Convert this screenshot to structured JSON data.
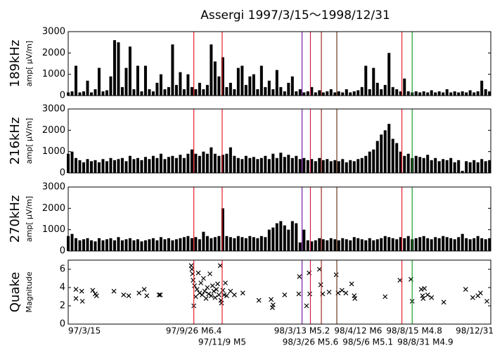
{
  "title": "Assergi 1997/3/15〜1998/12/31",
  "events": [
    {
      "x": 195,
      "label": "97/9/26 M6.4",
      "color": "#e8202a"
    },
    {
      "x": 239,
      "label": "97/11/9 M5",
      "color": "#e8202a"
    },
    {
      "x": 363,
      "label": "98/3/13 M5.2",
      "color": "#7a1fa0"
    },
    {
      "x": 376,
      "label": "98/3/26 M5.6",
      "color": "#d0204a"
    },
    {
      "x": 393,
      "label": "98/4/12 M6",
      "color": "#9a2a1a"
    },
    {
      "x": 417,
      "label": "98/5/6 M5.1",
      "color": "#6a3a20"
    },
    {
      "x": 518,
      "label": "98/8/15 M4.8",
      "color": "#e8202a"
    },
    {
      "x": 534,
      "label": "98/8/31 M4.9",
      "color": "#1a9a2a"
    }
  ],
  "chart_data": [
    {
      "type": "spike",
      "ylabel": "189kHz",
      "ylabel_unit": "amp[ μV/m]",
      "color": "#000000",
      "xlim": [
        0,
        656
      ],
      "ylim": [
        0,
        3000
      ],
      "yticks": [
        0,
        1000,
        2000,
        3000
      ],
      "x": [
        0,
        6,
        12,
        18,
        24,
        30,
        36,
        42,
        48,
        54,
        60,
        66,
        72,
        78,
        84,
        90,
        96,
        102,
        108,
        114,
        120,
        126,
        132,
        138,
        144,
        150,
        156,
        162,
        168,
        174,
        180,
        186,
        192,
        198,
        204,
        210,
        216,
        222,
        228,
        234,
        240,
        246,
        252,
        258,
        264,
        270,
        276,
        282,
        288,
        294,
        300,
        306,
        312,
        318,
        324,
        330,
        336,
        342,
        348,
        354,
        360,
        366,
        372,
        378,
        384,
        390,
        396,
        402,
        408,
        414,
        420,
        426,
        432,
        438,
        444,
        450,
        456,
        462,
        468,
        474,
        480,
        486,
        492,
        498,
        504,
        510,
        516,
        522,
        528,
        534,
        540,
        546,
        552,
        558,
        564,
        570,
        576,
        582,
        588,
        594,
        600,
        606,
        612,
        618,
        624,
        630,
        636,
        642,
        648,
        654
      ],
      "values": [
        150,
        200,
        1400,
        150,
        200,
        700,
        150,
        300,
        1300,
        200,
        250,
        900,
        2600,
        2500,
        400,
        1300,
        2300,
        300,
        1400,
        200,
        1400,
        300,
        200,
        600,
        1000,
        300,
        400,
        2400,
        500,
        1100,
        300,
        1000,
        400,
        300,
        600,
        300,
        500,
        2400,
        1600,
        900,
        1800,
        400,
        600,
        300,
        1300,
        1400,
        500,
        900,
        1000,
        300,
        1400,
        400,
        700,
        300,
        1200,
        400,
        200,
        600,
        900,
        200,
        300,
        150,
        200,
        400,
        150,
        250,
        150,
        200,
        300,
        150,
        200,
        150,
        300,
        150,
        200,
        250,
        400,
        1400,
        300,
        1300,
        600,
        300,
        500,
        2000,
        400,
        300,
        200,
        800,
        200,
        150,
        200,
        150,
        200,
        150,
        250,
        150,
        200,
        150,
        300,
        150,
        200,
        150,
        200,
        150,
        250,
        150,
        200,
        700,
        300,
        200
      ]
    },
    {
      "type": "spike",
      "ylabel": "216kHz",
      "ylabel_unit": "amp[ μV/m]",
      "color": "#000000",
      "xlim": [
        0,
        656
      ],
      "ylim": [
        0,
        3000
      ],
      "yticks": [
        0,
        1000,
        2000,
        3000
      ],
      "x": [
        0,
        6,
        12,
        18,
        24,
        30,
        36,
        42,
        48,
        54,
        60,
        66,
        72,
        78,
        84,
        90,
        96,
        102,
        108,
        114,
        120,
        126,
        132,
        138,
        144,
        150,
        156,
        162,
        168,
        174,
        180,
        186,
        192,
        198,
        204,
        210,
        216,
        222,
        228,
        234,
        240,
        246,
        252,
        258,
        264,
        270,
        276,
        282,
        288,
        294,
        300,
        306,
        312,
        318,
        324,
        330,
        336,
        342,
        348,
        354,
        360,
        366,
        372,
        378,
        384,
        390,
        396,
        402,
        408,
        414,
        420,
        426,
        432,
        438,
        444,
        450,
        456,
        462,
        468,
        474,
        480,
        486,
        492,
        498,
        504,
        510,
        516,
        522,
        528,
        534,
        540,
        546,
        552,
        558,
        564,
        570,
        576,
        582,
        588,
        594,
        600,
        606,
        612,
        618,
        624,
        630,
        636,
        642,
        648,
        654
      ],
      "values": [
        900,
        1000,
        700,
        600,
        500,
        650,
        550,
        600,
        500,
        650,
        550,
        700,
        600,
        650,
        700,
        550,
        800,
        650,
        700,
        600,
        750,
        650,
        800,
        700,
        900,
        650,
        750,
        800,
        700,
        850,
        700,
        900,
        1100,
        900,
        800,
        1000,
        900,
        1200,
        900,
        800,
        850,
        900,
        1200,
        800,
        700,
        650,
        800,
        700,
        750,
        650,
        700,
        800,
        650,
        900,
        700,
        950,
        750,
        850,
        700,
        800,
        650,
        700,
        600,
        650,
        550,
        700,
        600,
        650,
        550,
        600,
        550,
        650,
        500,
        600,
        550,
        650,
        700,
        800,
        1000,
        1100,
        1500,
        1800,
        2000,
        2300,
        1600,
        1400,
        1000,
        800,
        900,
        700,
        800,
        750,
        700,
        850,
        600,
        700,
        550,
        650,
        600,
        700,
        500,
        600,
        100,
        550,
        500,
        600,
        500,
        650,
        550,
        600
      ]
    },
    {
      "type": "spike",
      "ylabel": "270kHz",
      "ylabel_unit": "amp[ μV/m]",
      "color": "#000000",
      "xlim": [
        0,
        656
      ],
      "ylim": [
        0,
        3000
      ],
      "yticks": [
        0,
        1000,
        2000,
        3000
      ],
      "x": [
        0,
        6,
        12,
        18,
        24,
        30,
        36,
        42,
        48,
        54,
        60,
        66,
        72,
        78,
        84,
        90,
        96,
        102,
        108,
        114,
        120,
        126,
        132,
        138,
        144,
        150,
        156,
        162,
        168,
        174,
        180,
        186,
        192,
        198,
        204,
        210,
        216,
        222,
        228,
        234,
        240,
        246,
        252,
        258,
        264,
        270,
        276,
        282,
        288,
        294,
        300,
        306,
        312,
        318,
        324,
        330,
        336,
        342,
        348,
        354,
        360,
        366,
        372,
        378,
        384,
        390,
        396,
        402,
        408,
        414,
        420,
        426,
        432,
        438,
        444,
        450,
        456,
        462,
        468,
        474,
        480,
        486,
        492,
        498,
        504,
        510,
        516,
        522,
        528,
        534,
        540,
        546,
        552,
        558,
        564,
        570,
        576,
        582,
        588,
        594,
        600,
        606,
        612,
        618,
        624,
        630,
        636,
        642,
        648,
        654
      ],
      "values": [
        700,
        800,
        600,
        500,
        550,
        600,
        500,
        450,
        600,
        500,
        550,
        600,
        500,
        650,
        500,
        550,
        600,
        500,
        550,
        450,
        500,
        550,
        600,
        500,
        650,
        550,
        600,
        500,
        550,
        600,
        650,
        700,
        600,
        650,
        550,
        900,
        700,
        600,
        650,
        700,
        2000,
        700,
        650,
        600,
        700,
        650,
        600,
        700,
        650,
        600,
        700,
        650,
        1000,
        1100,
        1300,
        1400,
        1200,
        1000,
        1400,
        1300,
        400,
        1000,
        500,
        450,
        500,
        600,
        550,
        500,
        600,
        550,
        500,
        600,
        550,
        500,
        650,
        600,
        550,
        500,
        600,
        500,
        550,
        600,
        700,
        650,
        600,
        550,
        650,
        600,
        700,
        550,
        600,
        650,
        700,
        600,
        550,
        650,
        600,
        700,
        650,
        600,
        550,
        650,
        800,
        600,
        550,
        600,
        700,
        600,
        550,
        600
      ]
    },
    {
      "type": "scatter",
      "ylabel": "Quake",
      "ylabel_unit": "Magnitude",
      "color": "#000000",
      "xlim": [
        0,
        656
      ],
      "xticks": [
        {
          "value": 0,
          "label": "97/3/15"
        },
        {
          "value": 656,
          "label": "98/12/31"
        }
      ],
      "ylim": [
        0,
        7
      ],
      "yticks": [
        0,
        2,
        4,
        6
      ],
      "x": [
        12,
        12,
        21,
        22,
        38,
        42,
        44,
        71,
        86,
        94,
        110,
        118,
        122,
        141,
        143,
        191,
        192,
        193,
        194,
        195,
        196,
        198,
        200,
        202,
        204,
        206,
        208,
        210,
        212,
        214,
        216,
        218,
        220,
        222,
        224,
        226,
        228,
        230,
        232,
        234,
        236,
        237,
        238,
        240,
        242,
        244,
        246,
        252,
        258,
        271,
        296,
        315,
        318,
        317,
        336,
        358,
        359,
        370,
        374,
        375,
        390,
        392,
        395,
        405,
        416,
        419,
        425,
        431,
        440,
        444,
        445,
        492,
        515,
        532,
        534,
        548,
        550,
        553,
        551,
        558,
        564,
        583,
        617,
        628,
        636,
        640,
        650
      ],
      "values": [
        3.8,
        2.8,
        3.6,
        2.5,
        3.7,
        3.3,
        3.1,
        3.6,
        3.2,
        3.1,
        3.4,
        3.8,
        3.1,
        3.2,
        3.2,
        6.4,
        6.0,
        5.5,
        4.8,
        2.0,
        4.2,
        3.0,
        3.8,
        5.6,
        3.4,
        4.5,
        3.2,
        5.0,
        3.6,
        2.8,
        4.0,
        3.3,
        5.5,
        3.1,
        4.2,
        3.6,
        2.9,
        3.8,
        4.4,
        3.2,
        6.4,
        2.6,
        2.3,
        3.7,
        3.2,
        4.5,
        3.1,
        3.6,
        3.2,
        3.4,
        2.6,
        2.7,
        2.1,
        1.8,
        3.2,
        3.3,
        5.2,
        2.0,
        5.6,
        3.3,
        6.0,
        4.3,
        3.3,
        3.5,
        5.4,
        3.4,
        3.7,
        3.4,
        4.4,
        3.1,
        2.8,
        3.0,
        4.8,
        4.9,
        2.5,
        3.8,
        3.1,
        3.9,
        2.8,
        3.2,
        2.9,
        2.4,
        3.8,
        2.9,
        3.1,
        3.4,
        2.5
      ]
    }
  ]
}
